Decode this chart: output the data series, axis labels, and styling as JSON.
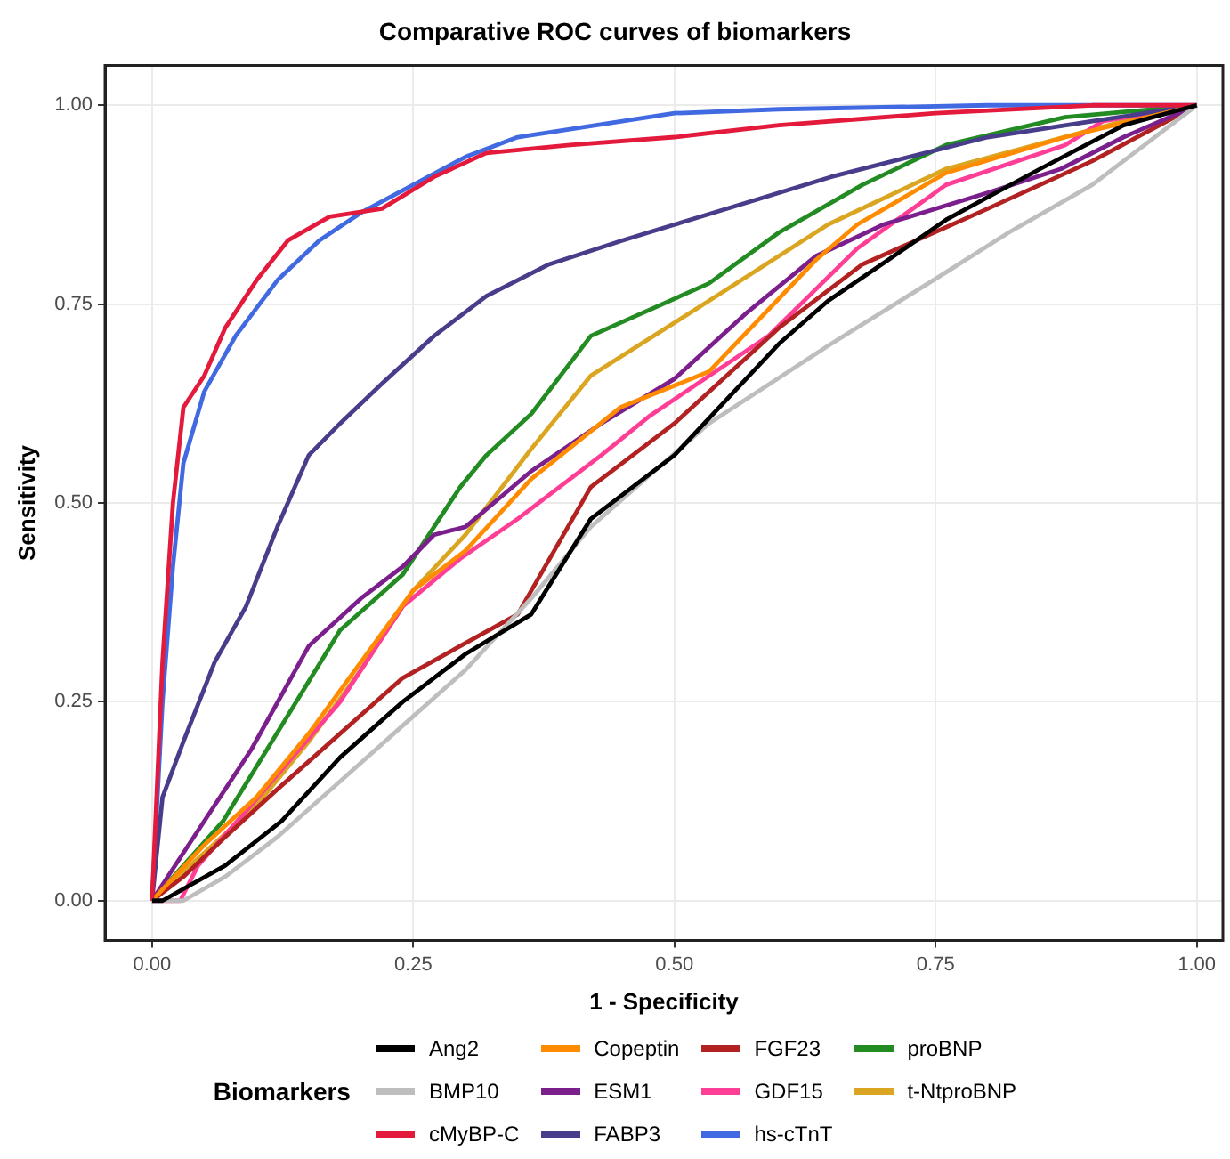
{
  "chart_data": {
    "type": "line",
    "title": "Comparative ROC curves of biomarkers",
    "xlabel": "1 - Specificity",
    "ylabel": "Sensitivity",
    "legend_title": "Biomarkers",
    "legend": "bottom",
    "grid": true,
    "marker": "none",
    "line_style": "solid",
    "xlim": [
      -0.045,
      1.025
    ],
    "ylim": [
      -0.05,
      1.05
    ],
    "xticks": [
      {
        "value": 0,
        "label": "0.00"
      },
      {
        "value": 0.25,
        "label": "0.25"
      },
      {
        "value": 0.5,
        "label": "0.50"
      },
      {
        "value": 0.75,
        "label": "0.75"
      },
      {
        "value": 1,
        "label": "1.00"
      }
    ],
    "yticks": [
      {
        "value": 0,
        "label": "0.00"
      },
      {
        "value": 0.25,
        "label": "0.25"
      },
      {
        "value": 0.5,
        "label": "0.50"
      },
      {
        "value": 0.75,
        "label": "0.75"
      },
      {
        "value": 1,
        "label": "1.00"
      }
    ],
    "series": [
      {
        "name": "Ang2",
        "color": "#000000",
        "x": [
          0,
          0.01,
          0.07,
          0.124,
          0.18,
          0.24,
          0.3,
          0.363,
          0.42,
          0.5,
          0.6,
          0.647,
          0.704,
          0.76,
          0.85,
          0.93,
          1
        ],
        "values": [
          0,
          0,
          0.044,
          0.1,
          0.18,
          0.25,
          0.31,
          0.36,
          0.48,
          0.56,
          0.7,
          0.754,
          0.805,
          0.856,
          0.92,
          0.975,
          1
        ]
      },
      {
        "name": "BMP10",
        "color": "#bebebe",
        "x": [
          0,
          0.03,
          0.07,
          0.12,
          0.18,
          0.24,
          0.3,
          0.363,
          0.42,
          0.533,
          0.65,
          0.76,
          0.82,
          0.9,
          0.95,
          1
        ],
        "values": [
          0,
          0,
          0.03,
          0.08,
          0.15,
          0.22,
          0.29,
          0.38,
          0.47,
          0.6,
          0.7,
          0.79,
          0.84,
          0.9,
          0.95,
          1
        ]
      },
      {
        "name": "cMyBP-C",
        "color": "#e31a3c",
        "x": [
          0,
          0.01,
          0.02,
          0.03,
          0.05,
          0.07,
          0.1,
          0.13,
          0.17,
          0.22,
          0.27,
          0.32,
          0.4,
          0.5,
          0.6,
          0.75,
          0.9,
          1
        ],
        "values": [
          0,
          0.3,
          0.5,
          0.62,
          0.66,
          0.72,
          0.78,
          0.83,
          0.86,
          0.87,
          0.91,
          0.94,
          0.95,
          0.96,
          0.975,
          0.99,
          1,
          1
        ]
      },
      {
        "name": "Copeptin",
        "color": "#ff8c00",
        "x": [
          0,
          0.05,
          0.1,
          0.15,
          0.2,
          0.25,
          0.3,
          0.363,
          0.448,
          0.533,
          0.635,
          0.675,
          0.76,
          0.874,
          1
        ],
        "values": [
          0,
          0.07,
          0.13,
          0.21,
          0.3,
          0.39,
          0.44,
          0.53,
          0.62,
          0.665,
          0.805,
          0.85,
          0.915,
          0.96,
          1
        ]
      },
      {
        "name": "ESM1",
        "color": "#7b1f8c",
        "x": [
          0,
          0.04,
          0.095,
          0.15,
          0.2,
          0.24,
          0.27,
          0.3,
          0.363,
          0.43,
          0.5,
          0.57,
          0.635,
          0.7,
          0.8,
          0.87,
          0.93,
          1
        ],
        "values": [
          0,
          0.08,
          0.19,
          0.32,
          0.38,
          0.42,
          0.46,
          0.47,
          0.54,
          0.6,
          0.656,
          0.74,
          0.81,
          0.85,
          0.89,
          0.92,
          0.96,
          1
        ]
      },
      {
        "name": "FABP3",
        "color": "#483d8b",
        "x": [
          0,
          0.01,
          0.03,
          0.06,
          0.09,
          0.12,
          0.15,
          0.18,
          0.22,
          0.27,
          0.32,
          0.38,
          0.45,
          0.55,
          0.65,
          0.8,
          0.9,
          1
        ],
        "values": [
          0,
          0.13,
          0.2,
          0.3,
          0.37,
          0.47,
          0.56,
          0.6,
          0.65,
          0.71,
          0.76,
          0.8,
          0.83,
          0.87,
          0.91,
          0.96,
          0.98,
          1
        ]
      },
      {
        "name": "FGF23",
        "color": "#b22222",
        "x": [
          0,
          0.03,
          0.07,
          0.12,
          0.18,
          0.24,
          0.35,
          0.42,
          0.5,
          0.6,
          0.68,
          0.8,
          0.9,
          1
        ],
        "values": [
          0,
          0.03,
          0.08,
          0.14,
          0.21,
          0.28,
          0.36,
          0.52,
          0.6,
          0.72,
          0.8,
          0.87,
          0.93,
          1
        ]
      },
      {
        "name": "GDF15",
        "color": "#ff3e96",
        "x": [
          0,
          0.027,
          0.044,
          0.095,
          0.18,
          0.24,
          0.295,
          0.35,
          0.43,
          0.477,
          0.59,
          0.675,
          0.76,
          0.874,
          0.91,
          1
        ],
        "values": [
          0,
          0,
          0.044,
          0.12,
          0.25,
          0.37,
          0.43,
          0.48,
          0.56,
          0.61,
          0.71,
          0.82,
          0.9,
          0.95,
          0.98,
          1
        ]
      },
      {
        "name": "hs-cTnT",
        "color": "#4169e1",
        "x": [
          0,
          0.01,
          0.02,
          0.03,
          0.05,
          0.08,
          0.12,
          0.16,
          0.2,
          0.25,
          0.3,
          0.35,
          0.4,
          0.5,
          0.6,
          0.8,
          1
        ],
        "values": [
          0,
          0.25,
          0.42,
          0.55,
          0.64,
          0.71,
          0.78,
          0.83,
          0.865,
          0.9,
          0.935,
          0.96,
          0.97,
          0.99,
          0.995,
          1,
          1
        ]
      },
      {
        "name": "proBNP",
        "color": "#228b22",
        "x": [
          0,
          0.068,
          0.124,
          0.18,
          0.24,
          0.295,
          0.32,
          0.363,
          0.42,
          0.533,
          0.6,
          0.68,
          0.76,
          0.874,
          1
        ],
        "values": [
          0,
          0.1,
          0.22,
          0.34,
          0.41,
          0.52,
          0.56,
          0.612,
          0.71,
          0.776,
          0.84,
          0.9,
          0.95,
          0.985,
          1
        ]
      },
      {
        "name": "t-NtproBNP",
        "color": "#daa520",
        "x": [
          0,
          0.05,
          0.1,
          0.15,
          0.2,
          0.25,
          0.3,
          0.363,
          0.42,
          0.533,
          0.647,
          0.76,
          0.93,
          1
        ],
        "values": [
          0,
          0.06,
          0.12,
          0.2,
          0.29,
          0.39,
          0.46,
          0.568,
          0.66,
          0.754,
          0.85,
          0.92,
          0.98,
          1
        ]
      }
    ]
  }
}
